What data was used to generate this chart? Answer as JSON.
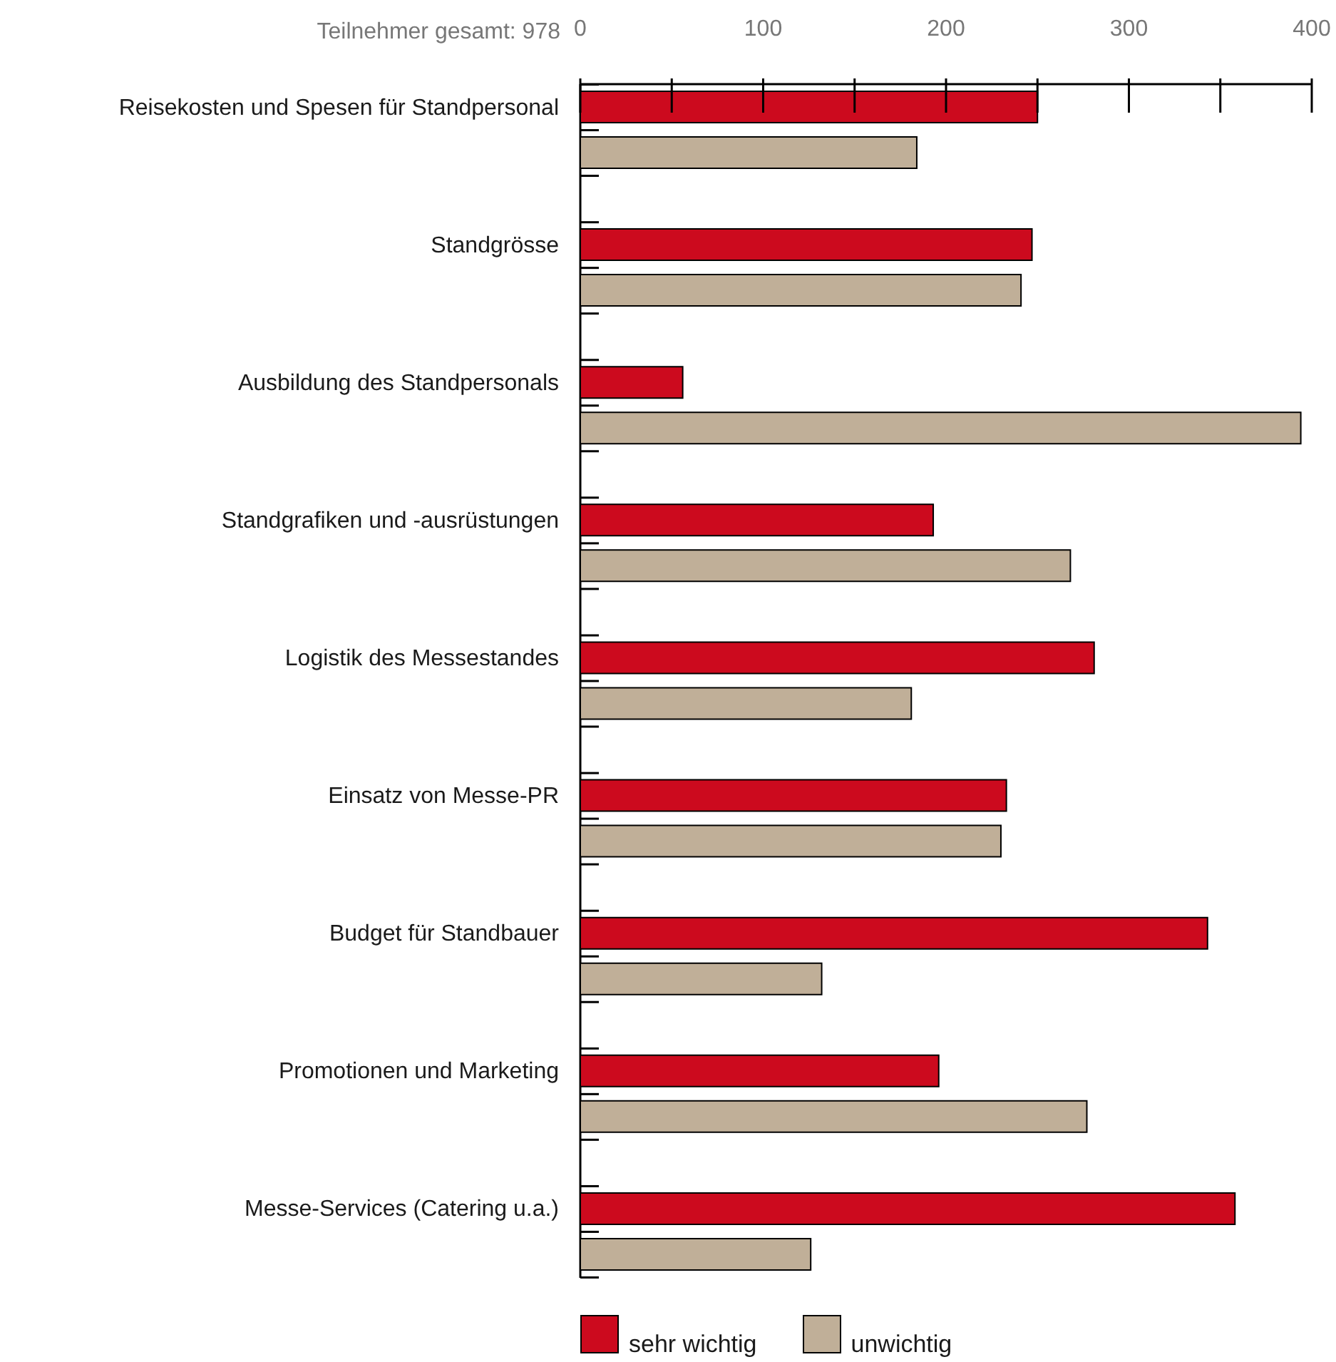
{
  "chart_data": {
    "type": "bar",
    "orientation": "horizontal",
    "categories": [
      "Reisekosten und Spesen für Standpersonal",
      "Standgrösse",
      "Ausbildung des Standpersonals",
      "Standgrafiken und -ausrüstungen",
      "Logistik des Messestandes",
      "Einsatz von Messe-PR",
      "Budget für Standbauer",
      "Promotionen und Marketing",
      "Messe-Services (Catering u.a.)"
    ],
    "series": [
      {
        "name": "sehr wichtig",
        "color": "#cc0a1e",
        "values": [
          250,
          247,
          56,
          193,
          281,
          233,
          343,
          196,
          358
        ]
      },
      {
        "name": "unwichtig",
        "color": "#c0af98",
        "values": [
          184,
          241,
          394,
          268,
          181,
          230,
          132,
          277,
          126
        ]
      }
    ],
    "xlim": [
      0,
      400
    ],
    "xticks": [
      0,
      {
        "value": 50,
        "label": null
      },
      100,
      {
        "value": 150,
        "label": null
      },
      200,
      {
        "value": 250,
        "label": null
      },
      300,
      {
        "value": 350,
        "label": null
      },
      400
    ],
    "annotations": [
      "Teilnehmer gesamt: 978"
    ],
    "legend": "bottom"
  }
}
